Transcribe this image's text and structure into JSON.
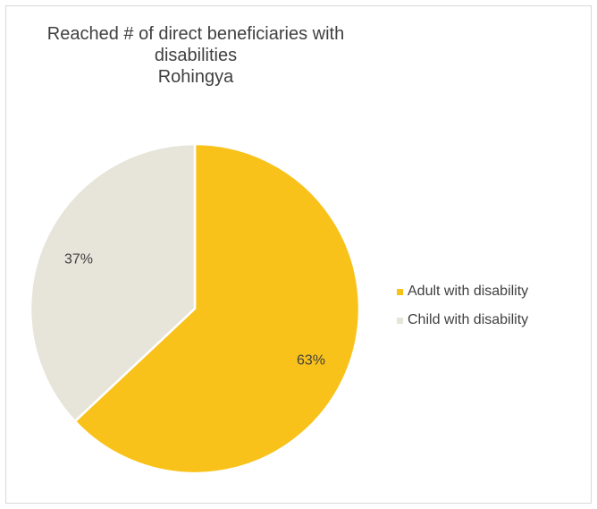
{
  "chart_data": {
    "type": "pie",
    "title": [
      "Reached # of direct beneficiaries with",
      "disabilities",
      "Rohingya"
    ],
    "categories": [
      "Adult with disability",
      "Child with disability"
    ],
    "values": [
      63,
      37
    ],
    "labels": [
      "63%",
      "37%"
    ],
    "colors": [
      "#f9c21a",
      "#e7e5da"
    ],
    "legend_placement": "right"
  }
}
